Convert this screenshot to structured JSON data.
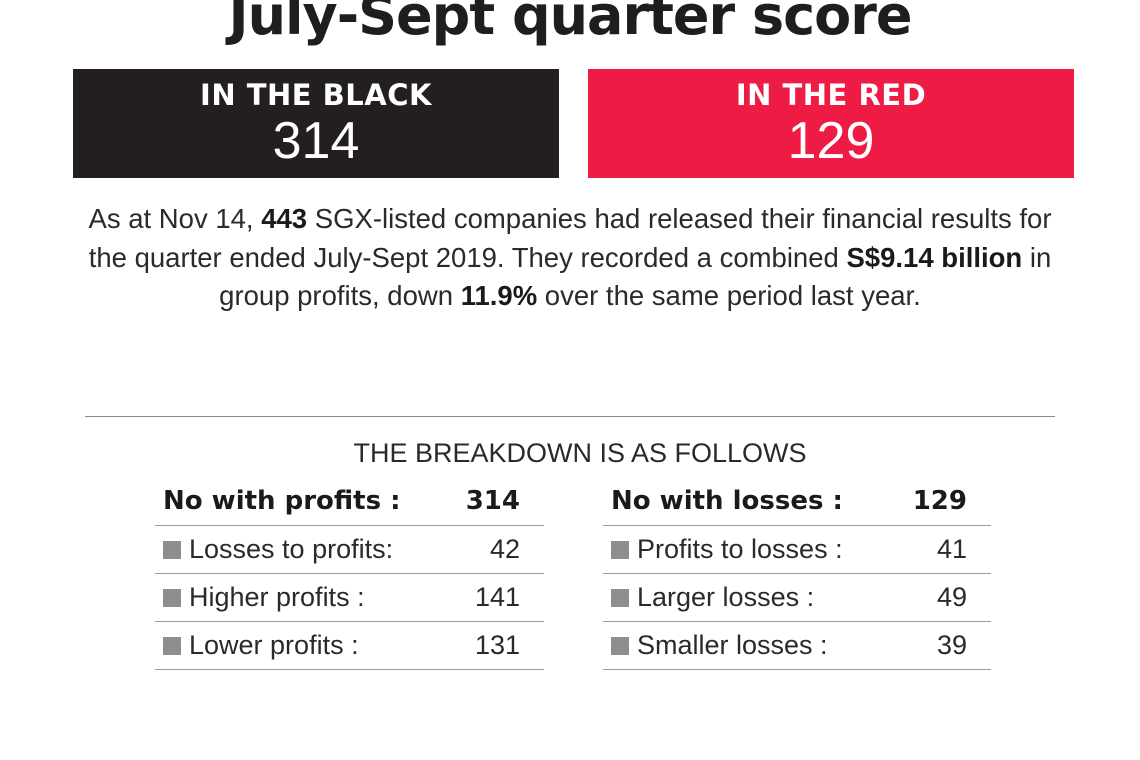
{
  "title": "July-Sept quarter score",
  "black": {
    "label": "IN THE BLACK",
    "value": "314"
  },
  "red": {
    "label": "IN THE RED",
    "value": "129"
  },
  "summary": {
    "t1": "As at Nov 14, ",
    "b1": "443",
    "t2": " SGX-listed companies had released their financial results for the quarter ended July-Sept 2019. They recorded a combined ",
    "b2": "S$9.14 billion",
    "t3": " in group profits, down ",
    "b3": "11.9%",
    "t4": " over the same period last year."
  },
  "breakdown": {
    "heading": "THE BREAKDOWN IS AS FOLLOWS",
    "profits": {
      "header": {
        "label": "No with profits :",
        "value": "314"
      },
      "items": [
        {
          "label": "Losses to profits:",
          "value": "42"
        },
        {
          "label": "Higher profits :",
          "value": "141"
        },
        {
          "label": "Lower profits :",
          "value": "131"
        }
      ]
    },
    "losses": {
      "header": {
        "label": "No with losses :",
        "value": "129"
      },
      "items": [
        {
          "label": "Profits to losses :",
          "value": "41"
        },
        {
          "label": "Larger losses :",
          "value": "49"
        },
        {
          "label": "Smaller losses :",
          "value": "39"
        }
      ]
    }
  },
  "colors": {
    "black_box": "#231f20",
    "red_box": "#ee1b45",
    "bullet": "#8e8e8e"
  }
}
